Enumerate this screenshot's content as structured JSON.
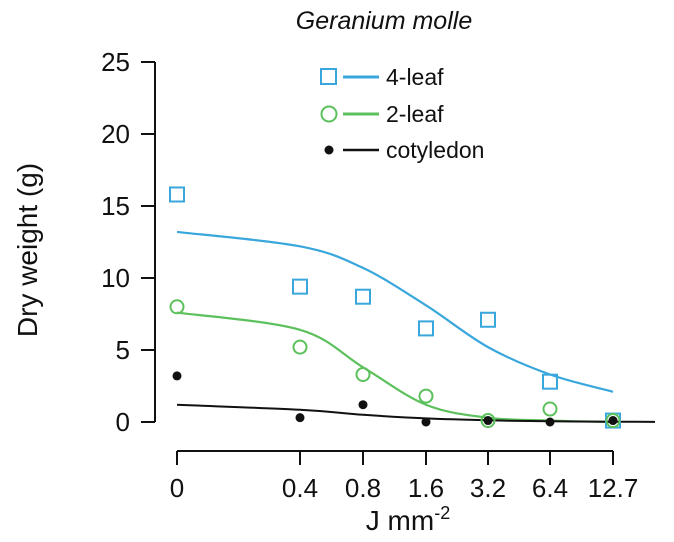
{
  "chart_data": {
    "type": "scatter",
    "title": "Geranium molle",
    "xlabel": "J mm",
    "xlabel_superscript": "-2",
    "ylabel": "Dry weight (g)",
    "x_categories": [
      "0",
      "0.4",
      "0.8",
      "1.6",
      "3.2",
      "6.4",
      "12.7"
    ],
    "ylim": [
      0,
      25
    ],
    "yticks": [
      "0",
      "5",
      "10",
      "15",
      "20",
      "25"
    ],
    "legend_position": "top-center",
    "series": [
      {
        "name": "4-leaf",
        "marker": "square",
        "color": "#3aa7dc",
        "x": [
          "0",
          "0.4",
          "0.8",
          "1.6",
          "3.2",
          "6.4",
          "12.7"
        ],
        "y": [
          15.8,
          9.4,
          8.7,
          6.5,
          7.1,
          2.8,
          0.1
        ],
        "fit_y": [
          13.2,
          12.2,
          10.7,
          8.1,
          5.2,
          3.3,
          2.1
        ]
      },
      {
        "name": "2-leaf",
        "marker": "circle",
        "color": "#5cc15c",
        "x": [
          "0",
          "0.4",
          "0.8",
          "1.6",
          "3.2",
          "6.4",
          "12.7"
        ],
        "y": [
          8.0,
          5.2,
          3.3,
          1.8,
          0.1,
          0.9,
          0.1
        ],
        "fit_y": [
          7.6,
          6.4,
          3.8,
          1.2,
          0.3,
          0.1,
          0.0
        ]
      },
      {
        "name": "cotyledon",
        "marker": "dot",
        "color": "#111111",
        "x": [
          "0",
          "0.4",
          "0.8",
          "1.6",
          "3.2",
          "6.4",
          "12.7"
        ],
        "y": [
          3.2,
          0.3,
          1.2,
          0.0,
          0.1,
          0.0,
          0.1
        ],
        "fit_y": [
          1.2,
          0.85,
          0.5,
          0.25,
          0.12,
          0.05,
          0.02
        ]
      }
    ]
  }
}
